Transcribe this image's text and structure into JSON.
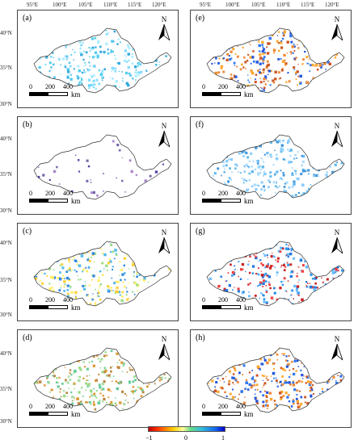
{
  "longitude_labels": [
    "95°E",
    "100°E",
    "105°E",
    "110°E",
    "115°E",
    "120°E"
  ],
  "latitude_labels": [
    "40°N",
    "35°N",
    "30°N"
  ],
  "panels": [
    {
      "label": "(a)",
      "dominant": "cyan"
    },
    {
      "label": "(b)",
      "dominant": "sparse-purple"
    },
    {
      "label": "(c)",
      "dominant": "mixed-yellow-blue"
    },
    {
      "label": "(d)",
      "dominant": "green-brown"
    },
    {
      "label": "(e)",
      "dominant": "blue-orange"
    },
    {
      "label": "(f)",
      "dominant": "light-blue"
    },
    {
      "label": "(g)",
      "dominant": "blue-red"
    },
    {
      "label": "(h)",
      "dominant": "blue-orange"
    }
  ],
  "north_label": "N",
  "scale_bar": {
    "ticks": [
      "0",
      "200",
      "400"
    ],
    "unit": "km"
  },
  "colorbar": {
    "min": "−1",
    "mid": "0",
    "max": "1",
    "colors": [
      "#c00000",
      "#ff3300",
      "#ffcc00",
      "#ffff99",
      "#66dd88",
      "#33bbdd",
      "#1166ee",
      "#0000cc"
    ]
  }
}
